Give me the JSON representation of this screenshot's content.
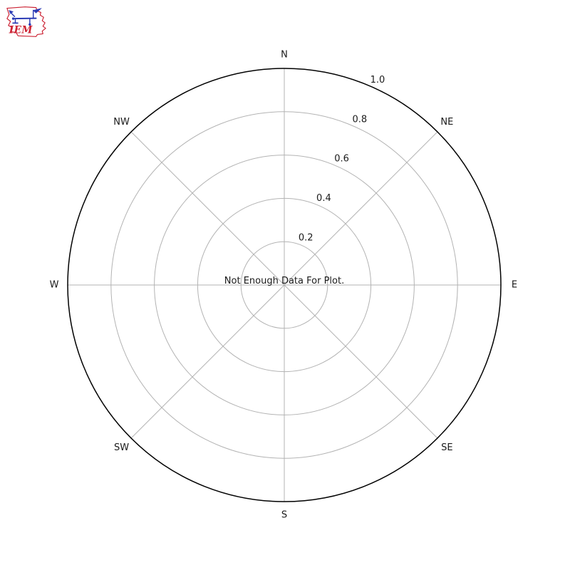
{
  "logo": {
    "name": "Iowa Environmental Mesonet",
    "text": "IEM",
    "outline_color": "#cc2233",
    "instrument_color": "#2b3bb5"
  },
  "chart_data": {
    "type": "polar",
    "title": "",
    "message": "Not Enough Data For Plot.",
    "directions": [
      "N",
      "NE",
      "E",
      "SE",
      "S",
      "SW",
      "W",
      "NW"
    ],
    "radial_ticks": [
      0.2,
      0.4,
      0.6,
      0.8,
      1.0
    ],
    "radial_tick_labels": [
      "0.2",
      "0.4",
      "0.6",
      "0.8",
      "1.0"
    ],
    "rlim": [
      0,
      1.0
    ],
    "rlabel_angle_deg": 24.5,
    "grid": true,
    "legend": "none",
    "series": [],
    "colors": {
      "grid": "#b3b3b3",
      "spine": "#000000",
      "text": "#1a1a1a",
      "background": "#ffffff"
    }
  }
}
